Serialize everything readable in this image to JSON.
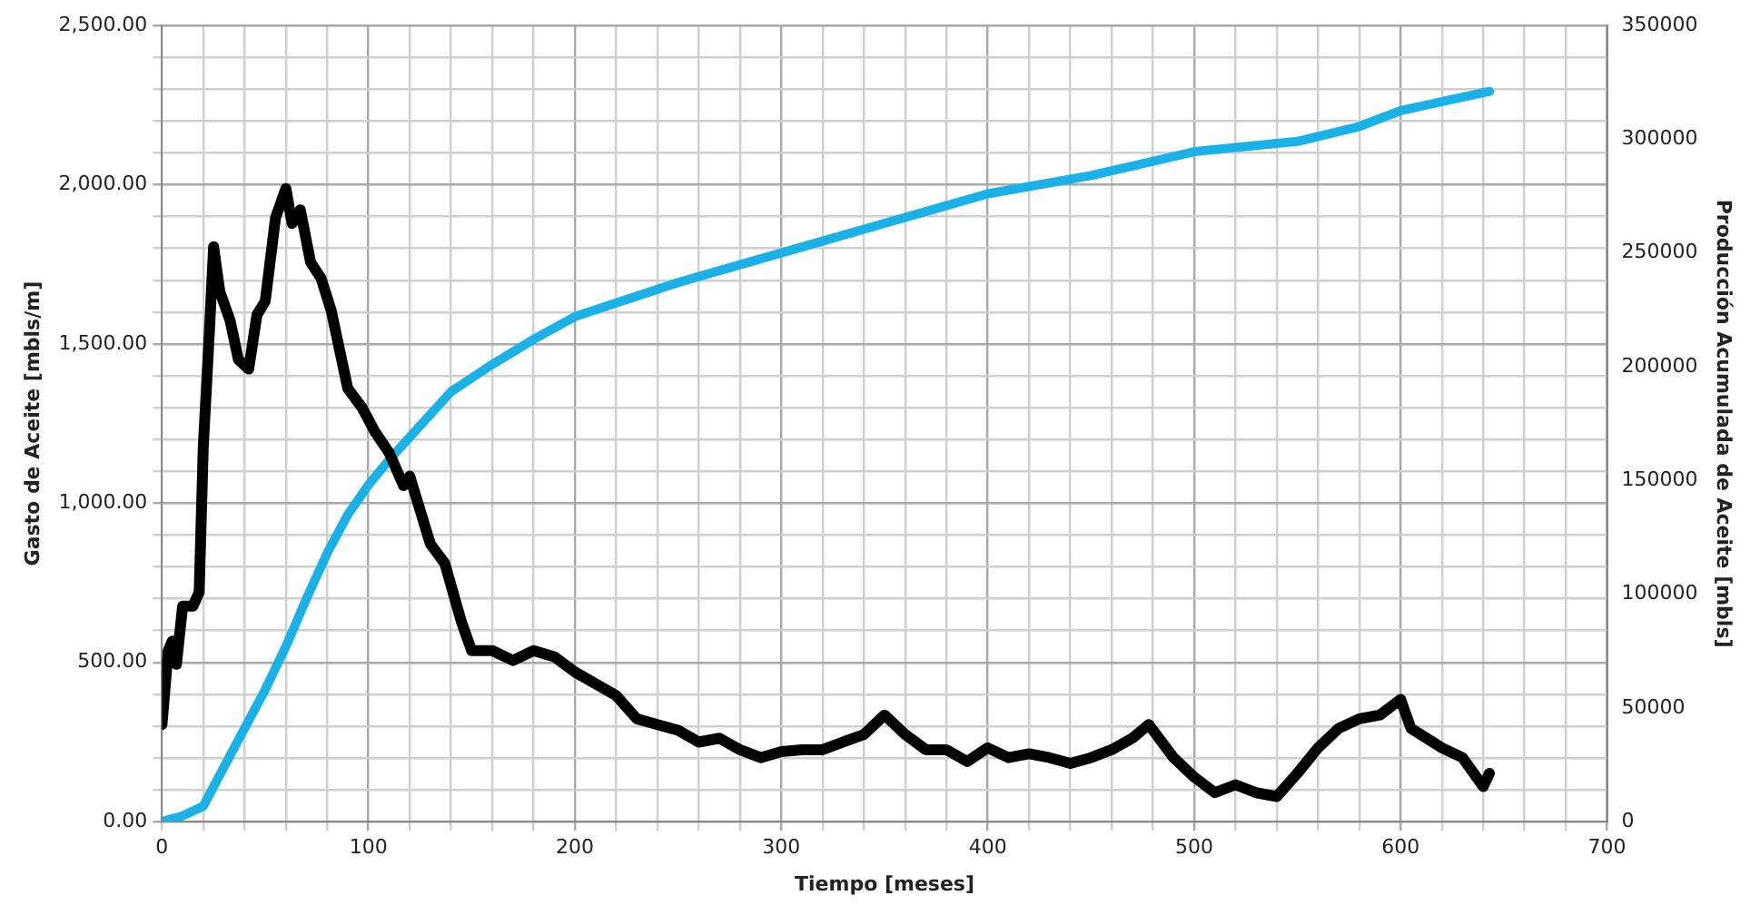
{
  "chart_data": {
    "type": "line",
    "xlabel": "Tiempo [meses]",
    "ylabel": "Gasto de Aceite [mbls/m]",
    "y2label": "Producción Acumulada de Aceite [mbls]",
    "grid": true,
    "legend": false,
    "marker": "none",
    "line_style": "solid",
    "xlim": [
      0,
      700
    ],
    "xticks": [
      0,
      {
        "value": 20,
        "label": null
      },
      {
        "value": 40,
        "label": null
      },
      {
        "value": 60,
        "label": null
      },
      {
        "value": 80,
        "label": null
      },
      100,
      {
        "value": 120,
        "label": null
      },
      {
        "value": 140,
        "label": null
      },
      {
        "value": 160,
        "label": null
      },
      {
        "value": 180,
        "label": null
      },
      200,
      {
        "value": 220,
        "label": null
      },
      {
        "value": 240,
        "label": null
      },
      {
        "value": 260,
        "label": null
      },
      {
        "value": 280,
        "label": null
      },
      300,
      {
        "value": 320,
        "label": null
      },
      {
        "value": 340,
        "label": null
      },
      {
        "value": 360,
        "label": null
      },
      {
        "value": 380,
        "label": null
      },
      400,
      {
        "value": 420,
        "label": null
      },
      {
        "value": 440,
        "label": null
      },
      {
        "value": 460,
        "label": null
      },
      {
        "value": 480,
        "label": null
      },
      500,
      {
        "value": 520,
        "label": null
      },
      {
        "value": 540,
        "label": null
      },
      {
        "value": 560,
        "label": null
      },
      {
        "value": 580,
        "label": null
      },
      600,
      {
        "value": 620,
        "label": null
      },
      {
        "value": 640,
        "label": null
      },
      {
        "value": 660,
        "label": null
      },
      {
        "value": 680,
        "label": null
      },
      700
    ],
    "ylim": [
      0,
      2500
    ],
    "yticks": [
      {
        "value": 0,
        "label": "0.00"
      },
      {
        "value": 100,
        "label": null
      },
      {
        "value": 200,
        "label": null
      },
      {
        "value": 300,
        "label": null
      },
      {
        "value": 400,
        "label": null
      },
      {
        "value": 500,
        "label": "500.00"
      },
      {
        "value": 600,
        "label": null
      },
      {
        "value": 700,
        "label": null
      },
      {
        "value": 800,
        "label": null
      },
      {
        "value": 900,
        "label": null
      },
      {
        "value": 1000,
        "label": "1,000.00"
      },
      {
        "value": 1100,
        "label": null
      },
      {
        "value": 1200,
        "label": null
      },
      {
        "value": 1300,
        "label": null
      },
      {
        "value": 1400,
        "label": null
      },
      {
        "value": 1500,
        "label": "1,500.00"
      },
      {
        "value": 1600,
        "label": null
      },
      {
        "value": 1700,
        "label": null
      },
      {
        "value": 1800,
        "label": null
      },
      {
        "value": 1900,
        "label": null
      },
      {
        "value": 2000,
        "label": "2,000.00"
      },
      {
        "value": 2100,
        "label": null
      },
      {
        "value": 2200,
        "label": null
      },
      {
        "value": 2300,
        "label": null
      },
      {
        "value": 2400,
        "label": null
      },
      {
        "value": 2500,
        "label": "2,500.00"
      }
    ],
    "y2lim": [
      0,
      350000
    ],
    "y2ticks": [
      0,
      50000,
      100000,
      150000,
      200000,
      250000,
      300000,
      350000
    ],
    "series": [
      {
        "color": "#000000",
        "x": [
          0,
          3,
          5,
          7,
          10,
          15,
          18,
          20,
          23,
          25,
          28,
          33,
          37,
          42,
          46,
          50,
          55,
          60,
          63,
          67,
          72,
          77,
          82,
          90,
          97,
          103,
          110,
          117,
          120,
          130,
          137,
          145,
          150,
          160,
          170,
          180,
          190,
          200,
          210,
          220,
          230,
          240,
          250,
          260,
          270,
          280,
          290,
          300,
          310,
          320,
          330,
          340,
          350,
          360,
          370,
          380,
          390,
          400,
          410,
          420,
          430,
          440,
          450,
          460,
          470,
          478,
          490,
          500,
          510,
          520,
          530,
          540,
          550,
          560,
          570,
          580,
          590,
          600,
          605,
          620,
          630,
          640,
          643
        ],
        "values": [
          305,
          537,
          567,
          494,
          677,
          677,
          720,
          1177,
          1543,
          1805,
          1665,
          1573,
          1451,
          1421,
          1591,
          1634,
          1896,
          1988,
          1878,
          1921,
          1756,
          1707,
          1604,
          1360,
          1299,
          1226,
          1159,
          1055,
          1085,
          872,
          811,
          628,
          537,
          537,
          506,
          537,
          518,
          470,
          433,
          396,
          323,
          305,
          287,
          250,
          262,
          226,
          201,
          220,
          226,
          226,
          250,
          274,
          335,
          274,
          226,
          226,
          189,
          232,
          201,
          213,
          201,
          183,
          201,
          226,
          262,
          305,
          201,
          140,
          91,
          116,
          91,
          79,
          152,
          232,
          293,
          323,
          335,
          384,
          293,
          232,
          201,
          110,
          152
        ]
      },
      {
        "color": "#1ab0e8",
        "axis": "y2",
        "x": [
          0,
          10,
          20,
          30,
          40,
          50,
          60,
          70,
          80,
          90,
          100,
          110,
          120,
          140,
          160,
          180,
          200,
          250,
          300,
          350,
          400,
          450,
          500,
          550,
          580,
          600,
          643
        ],
        "values": [
          0,
          2600,
          6800,
          24000,
          41000,
          58000,
          77000,
          98000,
          118000,
          135000,
          148000,
          159000,
          169000,
          189000,
          201000,
          212000,
          222000,
          237000,
          250000,
          263000,
          276000,
          284000,
          294500,
          299000,
          305600,
          312500,
          321000
        ]
      }
    ]
  }
}
